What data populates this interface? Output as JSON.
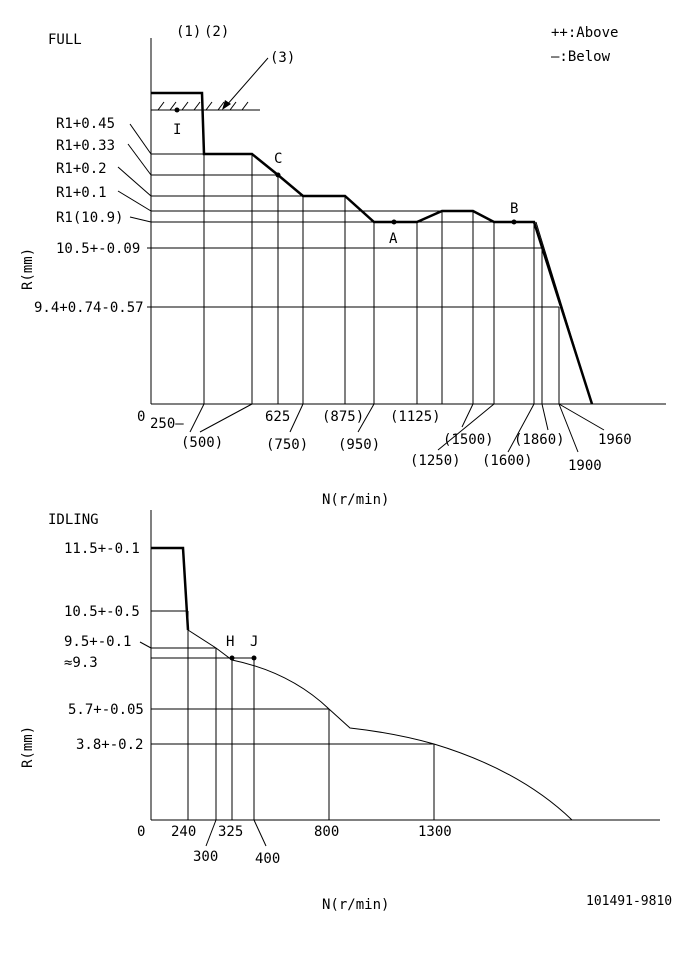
{
  "chart_data": [
    {
      "type": "line",
      "title": "FULL",
      "xlabel": "N(r/min)",
      "ylabel": "R(mm)",
      "origin_label": "0",
      "legend": {
        "above": "++:Above",
        "below": "—:Below"
      },
      "annotations": {
        "p1": "(1)",
        "p2": "(2)",
        "p3": "(3)",
        "I": "I",
        "C": "C",
        "A": "A",
        "B": "B"
      },
      "y_labels": [
        "R1+0.45",
        "R1+0.33",
        "R1+0.2",
        "R1+0.1",
        "R1(10.9)",
        "10.5+-0.09",
        "9.4+0.74-0.57"
      ],
      "x_labels": [
        "250—",
        "(500)",
        "625",
        "(750)",
        "(875)",
        "(950)",
        "(1125)",
        "(1250)",
        "(1500)",
        "(1600)",
        "(1860)",
        "1900",
        "1960"
      ],
      "series": [
        {
          "x": [
            250,
            500,
            500,
            625,
            750,
            875,
            950,
            1125,
            1250,
            1500,
            1600,
            1860,
            1960
          ],
          "y": [
            "R1+0.45",
            "R1+0.45",
            "R1+0.33",
            "R1+0.33",
            "R1+0.2",
            "R1+0.2",
            "R1(10.9)",
            "R1(10.9)",
            "R1+0.1",
            "R1+0.1",
            "R1(10.9)",
            "R1(10.9)",
            "0"
          ]
        }
      ]
    },
    {
      "type": "line",
      "title": "IDLING",
      "xlabel": "N(r/min)",
      "ylabel": "R(mm)",
      "origin_label": "0",
      "annotations": {
        "H": "H",
        "J": "J"
      },
      "y_labels": [
        "11.5+-0.1",
        "10.5+-0.5",
        "9.5+-0.1",
        "≈9.3",
        "5.7+-0.05",
        "3.8+-0.2"
      ],
      "x_labels": [
        "240",
        "325",
        "800",
        "1300",
        "300",
        "400"
      ],
      "series": [
        {
          "x": [
            0,
            240,
            240,
            325,
            400,
            800,
            1300
          ],
          "y": [
            11.5,
            11.5,
            10.5,
            9.3,
            9.3,
            5.7,
            3.8
          ]
        }
      ]
    }
  ],
  "code": "101491-9810"
}
